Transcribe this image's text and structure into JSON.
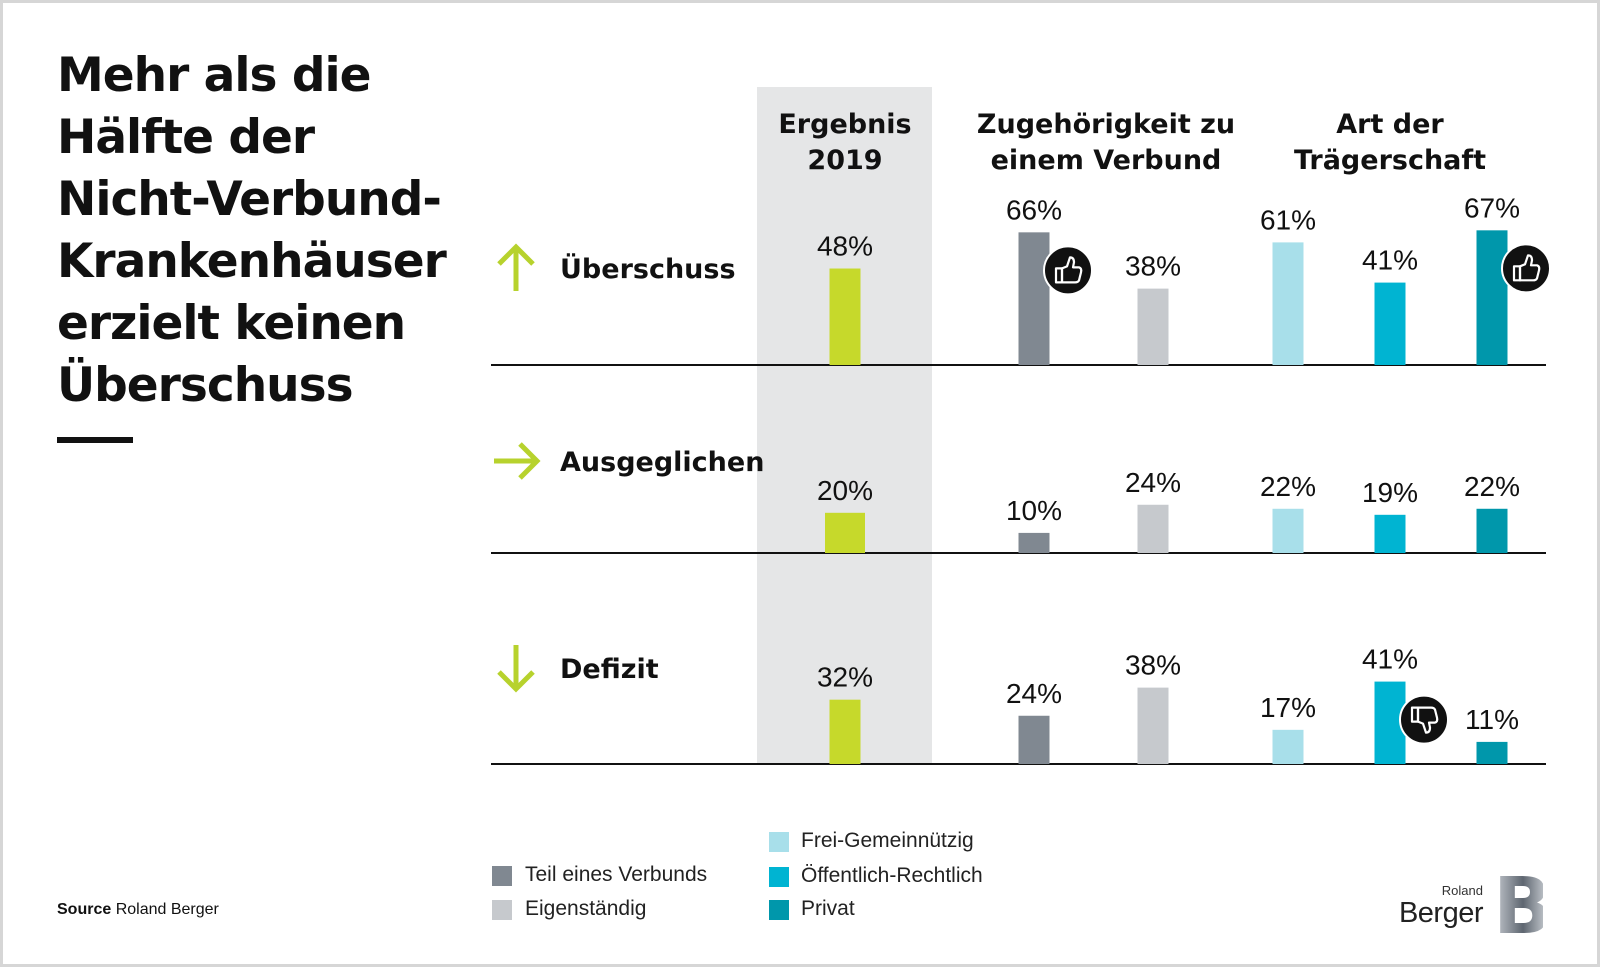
{
  "headline": "Mehr als die Hälfte der Nicht-Verbund-Krankenhäuser erzielt keinen Überschuss",
  "source": {
    "label": "Source",
    "text": "Roland Berger"
  },
  "logo": {
    "line1": "Roland",
    "line2": "Berger",
    "mark": "B"
  },
  "colors": {
    "ergebnis": "#c6d92b",
    "teil_eines_verbunds": "#808891",
    "eigenstaendig": "#c6c9cd",
    "frei_gemeinnuetzig": "#a8dfea",
    "oeffentlich_rechtlich": "#00b4d2",
    "privat": "#0097ab",
    "highlight_band": "#e5e6e7",
    "arrow": "#b7d22d"
  },
  "chart_data": {
    "type": "bar",
    "groups": [
      {
        "header": [
          "Ergebnis",
          "2019"
        ],
        "series": [
          "Ergebnis 2019"
        ]
      },
      {
        "header": [
          "Zugehörigkeit zu",
          "einem Verbund"
        ],
        "series": [
          "Teil eines Verbunds",
          "Eigenständig"
        ]
      },
      {
        "header": [
          "Art der",
          "Trägerschaft"
        ],
        "series": [
          "Frei-Gemeinnützig",
          "Öffentlich-Rechtlich",
          "Privat"
        ]
      }
    ],
    "rows": [
      {
        "label": "Überschuss",
        "arrow": "arrow-up-icon",
        "values": [
          48,
          66,
          38,
          61,
          41,
          67
        ],
        "value_labels": [
          "48%",
          "66%",
          "38%",
          "61%",
          "41%",
          "67%"
        ],
        "badges": [
          {
            "series": "Teil eines Verbunds",
            "icon": "thumbs-up-icon"
          },
          {
            "series": "Privat",
            "icon": "thumbs-up-icon"
          }
        ]
      },
      {
        "label": "Ausgeglichen",
        "arrow": "arrow-right-icon",
        "values": [
          20,
          10,
          24,
          22,
          19,
          22
        ],
        "value_labels": [
          "20%",
          "10%",
          "24%",
          "22%",
          "19%",
          "22%"
        ],
        "badges": []
      },
      {
        "label": "Defizit",
        "arrow": "arrow-down-icon",
        "values": [
          32,
          24,
          38,
          17,
          41,
          11
        ],
        "value_labels": [
          "32%",
          "24%",
          "38%",
          "17%",
          "41%",
          "11%"
        ],
        "badges": [
          {
            "series": "Öffentlich-Rechtlich",
            "icon": "thumbs-down-icon"
          }
        ]
      }
    ],
    "legend": [
      {
        "label": "Teil eines Verbunds",
        "color_key": "teil_eines_verbunds"
      },
      {
        "label": "Eigenständig",
        "color_key": "eigenstaendig"
      },
      {
        "label": "Frei-Gemeinnützig",
        "color_key": "frei_gemeinnuetzig"
      },
      {
        "label": "Öffentlich-Rechtlich",
        "color_key": "oeffentlich_rechtlich"
      },
      {
        "label": "Privat",
        "color_key": "privat"
      }
    ],
    "unit": "%",
    "grid": false
  }
}
